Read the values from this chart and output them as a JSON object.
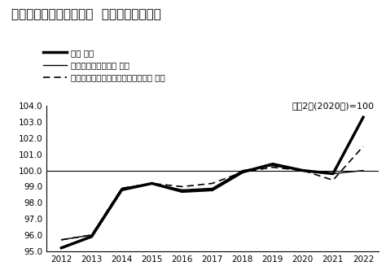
{
  "title": "名古屋市消費者物価指数  年次推移のグラフ",
  "annotation": "令和2年(2020年)=100",
  "years": [
    2012,
    2013,
    2014,
    2015,
    2016,
    2017,
    2018,
    2019,
    2020,
    2021,
    2022
  ],
  "series1_label": "総合 指数",
  "series2_label": "生鮮食品を除く総合 指数",
  "series3_label": "生鮮食品及びエネルギーを除く総合 指数",
  "series1_values": [
    95.2,
    95.9,
    98.8,
    99.2,
    98.7,
    98.8,
    99.9,
    100.4,
    100.0,
    99.8,
    103.3
  ],
  "series2_values": [
    95.7,
    96.0,
    98.9,
    99.2,
    98.8,
    98.9,
    100.0,
    100.3,
    100.0,
    99.8,
    100.0
  ],
  "series3_values": [
    95.7,
    96.0,
    98.9,
    99.2,
    99.0,
    99.2,
    99.9,
    100.2,
    100.0,
    99.4,
    101.5
  ],
  "ylim": [
    95.0,
    104.0
  ],
  "yticks": [
    95.0,
    96.0,
    97.0,
    98.0,
    99.0,
    100.0,
    101.0,
    102.0,
    103.0,
    104.0
  ],
  "xlim_min": 2011.5,
  "xlim_max": 2022.5,
  "background_color": "#ffffff",
  "line_color": "#000000",
  "title_fontsize": 11,
  "legend_fontsize": 7.5,
  "tick_fontsize": 7.5,
  "annotation_fontsize": 8
}
